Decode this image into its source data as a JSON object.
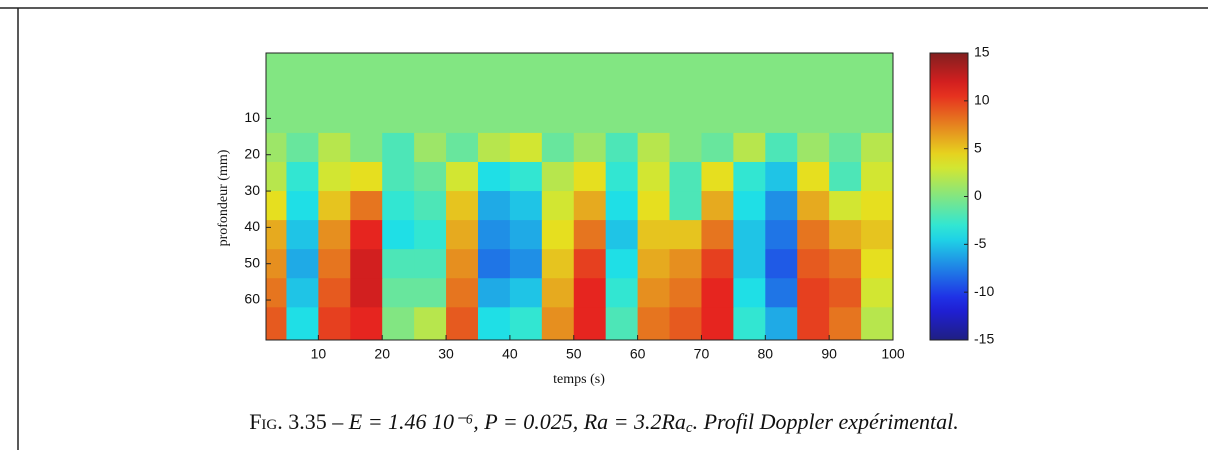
{
  "chart_data": {
    "type": "heatmap",
    "xlabel": "temps (s)",
    "ylabel": "profondeur (mm)",
    "xlim": [
      1.8,
      100
    ],
    "xticks": [
      10,
      20,
      30,
      40,
      50,
      60,
      70,
      80,
      90,
      100
    ],
    "ylim": [
      -8,
      71
    ],
    "y_reversed": true,
    "yticks": [
      10,
      20,
      30,
      40,
      50,
      60
    ],
    "xbins": [
      1.8,
      5,
      10,
      15,
      20,
      25,
      30,
      35,
      40,
      45,
      50,
      55,
      60,
      65,
      70,
      75,
      80,
      85,
      90,
      95,
      100
    ],
    "ybins": [
      -8,
      14,
      22,
      30,
      38,
      46,
      54,
      62,
      71
    ],
    "z": [
      [
        0,
        0,
        0,
        0,
        0,
        0,
        0,
        0,
        0,
        0,
        0,
        0,
        0,
        0,
        0,
        0,
        0,
        0,
        0,
        0
      ],
      [
        1,
        -1,
        2,
        0,
        -2,
        1,
        -1,
        2,
        3,
        -1,
        1,
        -2,
        2,
        0,
        -1,
        2,
        -2,
        1,
        -1,
        2
      ],
      [
        2,
        -3,
        3,
        4,
        -2,
        -1,
        3,
        -4,
        -3,
        2,
        4,
        -3,
        3,
        -2,
        4,
        -3,
        -5,
        4,
        -2,
        3
      ],
      [
        4,
        -4,
        5,
        8,
        -3,
        -2,
        5,
        -6,
        -5,
        3,
        6,
        -4,
        4,
        -2,
        6,
        -4,
        -7,
        6,
        3,
        4
      ],
      [
        6,
        -5,
        7,
        11,
        -4,
        -3,
        6,
        -7,
        -6,
        4,
        8,
        -5,
        5,
        5,
        8,
        -5,
        -8,
        8,
        6,
        5
      ],
      [
        7,
        -6,
        8,
        12,
        -2,
        -2,
        7,
        -8,
        -7,
        5,
        10,
        -4,
        6,
        7,
        10,
        -5,
        -9,
        9,
        8,
        4
      ],
      [
        8,
        -5,
        9,
        12,
        -1,
        -1,
        8,
        -6,
        -5,
        6,
        11,
        -3,
        7,
        8,
        11,
        -4,
        -8,
        10,
        9,
        3
      ],
      [
        9,
        -4,
        10,
        11,
        0,
        2,
        9,
        -4,
        -3,
        7,
        11,
        -2,
        8,
        9,
        11,
        -3,
        -6,
        10,
        8,
        2
      ]
    ],
    "colormap": "jet",
    "clim": [
      -15,
      15
    ],
    "cticks": [
      -15,
      -10,
      -5,
      0,
      5,
      10,
      15
    ],
    "caption": {
      "label": "Fig. 3.35 –",
      "formula": "E = 1.46 10⁻⁶, P = 0.025, Ra = 3.2Ra",
      "subscript": "c",
      "text": ". Profil Doppler expérimental."
    }
  }
}
